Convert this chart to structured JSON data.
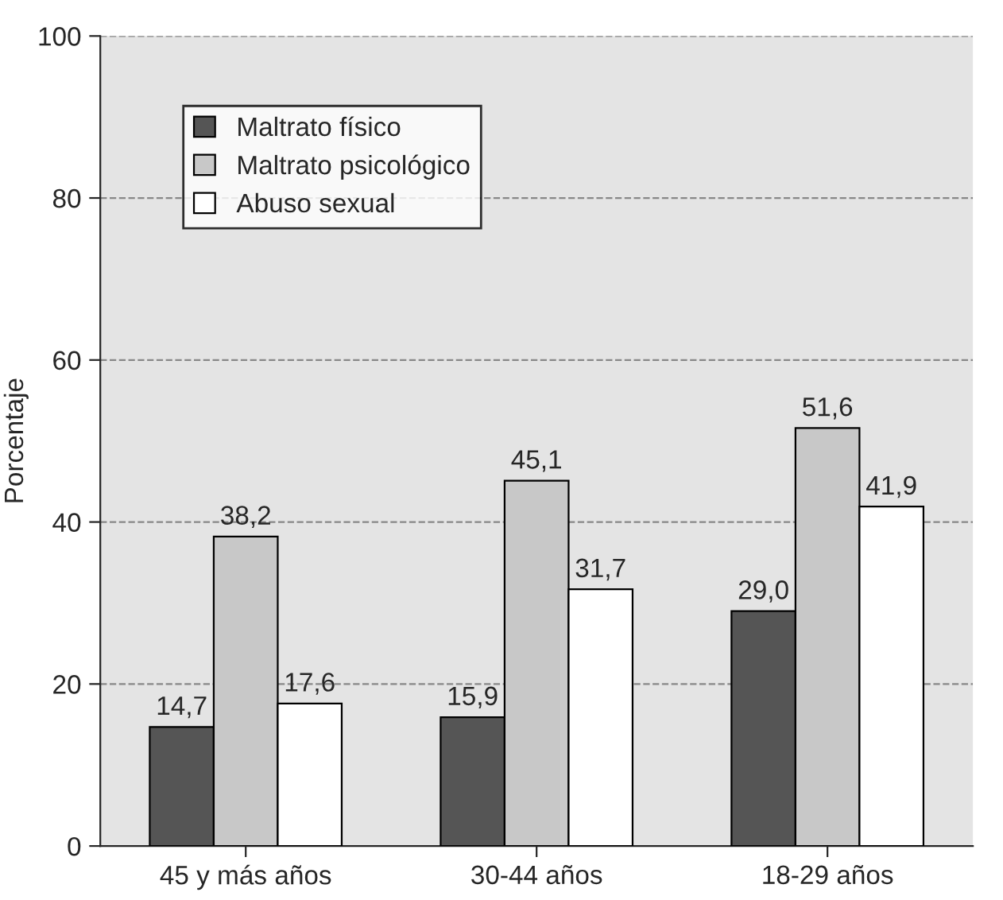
{
  "chart_data": {
    "type": "bar",
    "ylabel": "Porcentaje",
    "categories": [
      "45 y más años",
      "30-44 años",
      "18-29 años"
    ],
    "series": [
      {
        "name": "Maltrato físico",
        "color": "#555555",
        "values": [
          14.7,
          15.9,
          29.0
        ],
        "value_labels": [
          "14,7",
          "15,9",
          "29,0"
        ]
      },
      {
        "name": "Maltrato psicológico",
        "color": "#c8c8c8",
        "values": [
          38.2,
          45.1,
          51.6
        ],
        "value_labels": [
          "38,2",
          "45,1",
          "51,6"
        ]
      },
      {
        "name": "Abuso sexual",
        "color": "#ffffff",
        "values": [
          17.6,
          31.7,
          41.9
        ],
        "value_labels": [
          "17,6",
          "31,7",
          "41,9"
        ]
      }
    ],
    "ylim": [
      0,
      100
    ],
    "yticks": [
      0,
      20,
      40,
      60,
      80,
      100
    ],
    "grid": "y",
    "legend": "top left"
  }
}
